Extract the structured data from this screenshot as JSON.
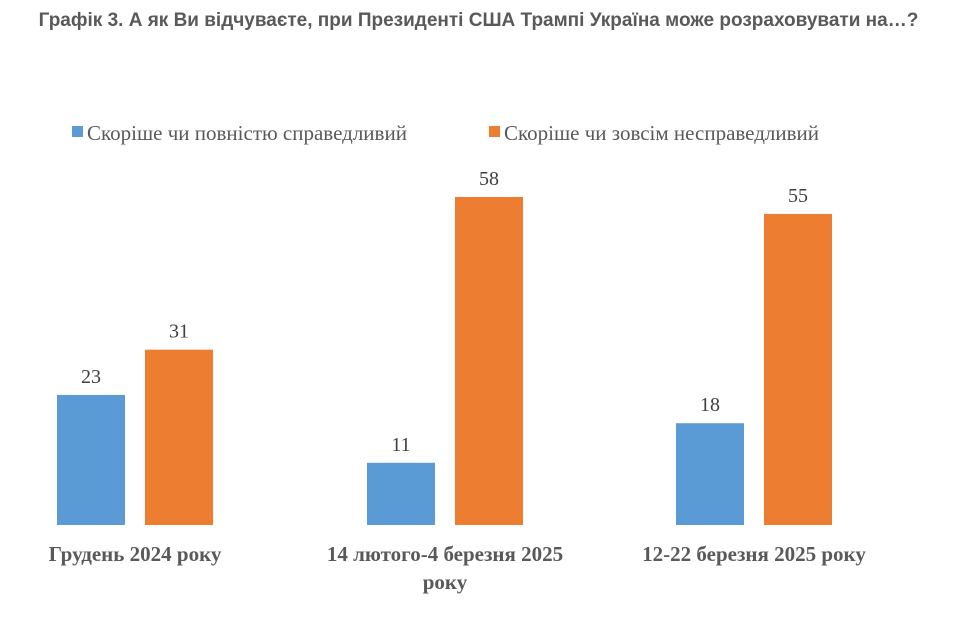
{
  "chart_data": {
    "type": "bar",
    "title": "Графік 3. А як Ви відчуваєте, при Президенті США Трампі Україна може розраховувати на…?",
    "categories": [
      [
        "Грудень 2024 року"
      ],
      [
        "14 лютого-4 березня 2025",
        "року"
      ],
      [
        "12-22 березня 2025 року"
      ]
    ],
    "series": [
      {
        "name": "Скоріше чи повністю справедливий",
        "color": "#5B9BD5",
        "values": [
          23,
          11,
          18
        ]
      },
      {
        "name": "Скоріше чи зовсім несправедливий",
        "color": "#ED7D31",
        "values": [
          31,
          58,
          55
        ]
      }
    ],
    "ylim": [
      0,
      60
    ],
    "grid": false,
    "legend_position": "top",
    "data_labels": true
  }
}
